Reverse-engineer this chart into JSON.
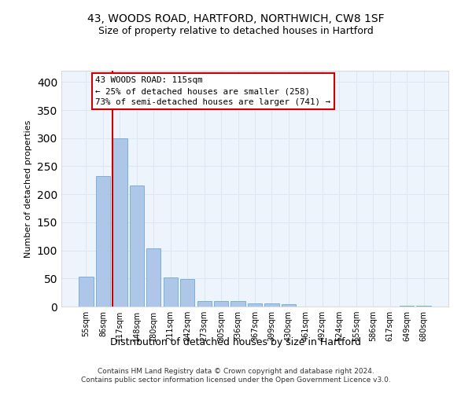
{
  "title_line1": "43, WOODS ROAD, HARTFORD, NORTHWICH, CW8 1SF",
  "title_line2": "Size of property relative to detached houses in Hartford",
  "xlabel": "Distribution of detached houses by size in Hartford",
  "ylabel": "Number of detached properties",
  "bar_labels": [
    "55sqm",
    "86sqm",
    "117sqm",
    "148sqm",
    "180sqm",
    "211sqm",
    "242sqm",
    "273sqm",
    "305sqm",
    "336sqm",
    "367sqm",
    "399sqm",
    "430sqm",
    "461sqm",
    "492sqm",
    "524sqm",
    "555sqm",
    "586sqm",
    "617sqm",
    "649sqm",
    "680sqm"
  ],
  "bar_values": [
    53,
    232,
    300,
    215,
    104,
    52,
    49,
    10,
    10,
    10,
    6,
    5,
    4,
    0,
    0,
    0,
    0,
    0,
    0,
    2,
    2
  ],
  "bar_color": "#aec6e8",
  "bar_edge_color": "#5a9fd4",
  "grid_color": "#dce9f5",
  "background_color": "#eef4fb",
  "annotation_text": "43 WOODS ROAD: 115sqm\n← 25% of detached houses are smaller (258)\n73% of semi-detached houses are larger (741) →",
  "annotation_box_color": "#ffffff",
  "annotation_box_edge": "#cc0000",
  "vline_color": "#cc0000",
  "footer_text": "Contains HM Land Registry data © Crown copyright and database right 2024.\nContains public sector information licensed under the Open Government Licence v3.0.",
  "ylim": [
    0,
    420
  ],
  "yticks": [
    0,
    50,
    100,
    150,
    200,
    250,
    300,
    350,
    400
  ]
}
